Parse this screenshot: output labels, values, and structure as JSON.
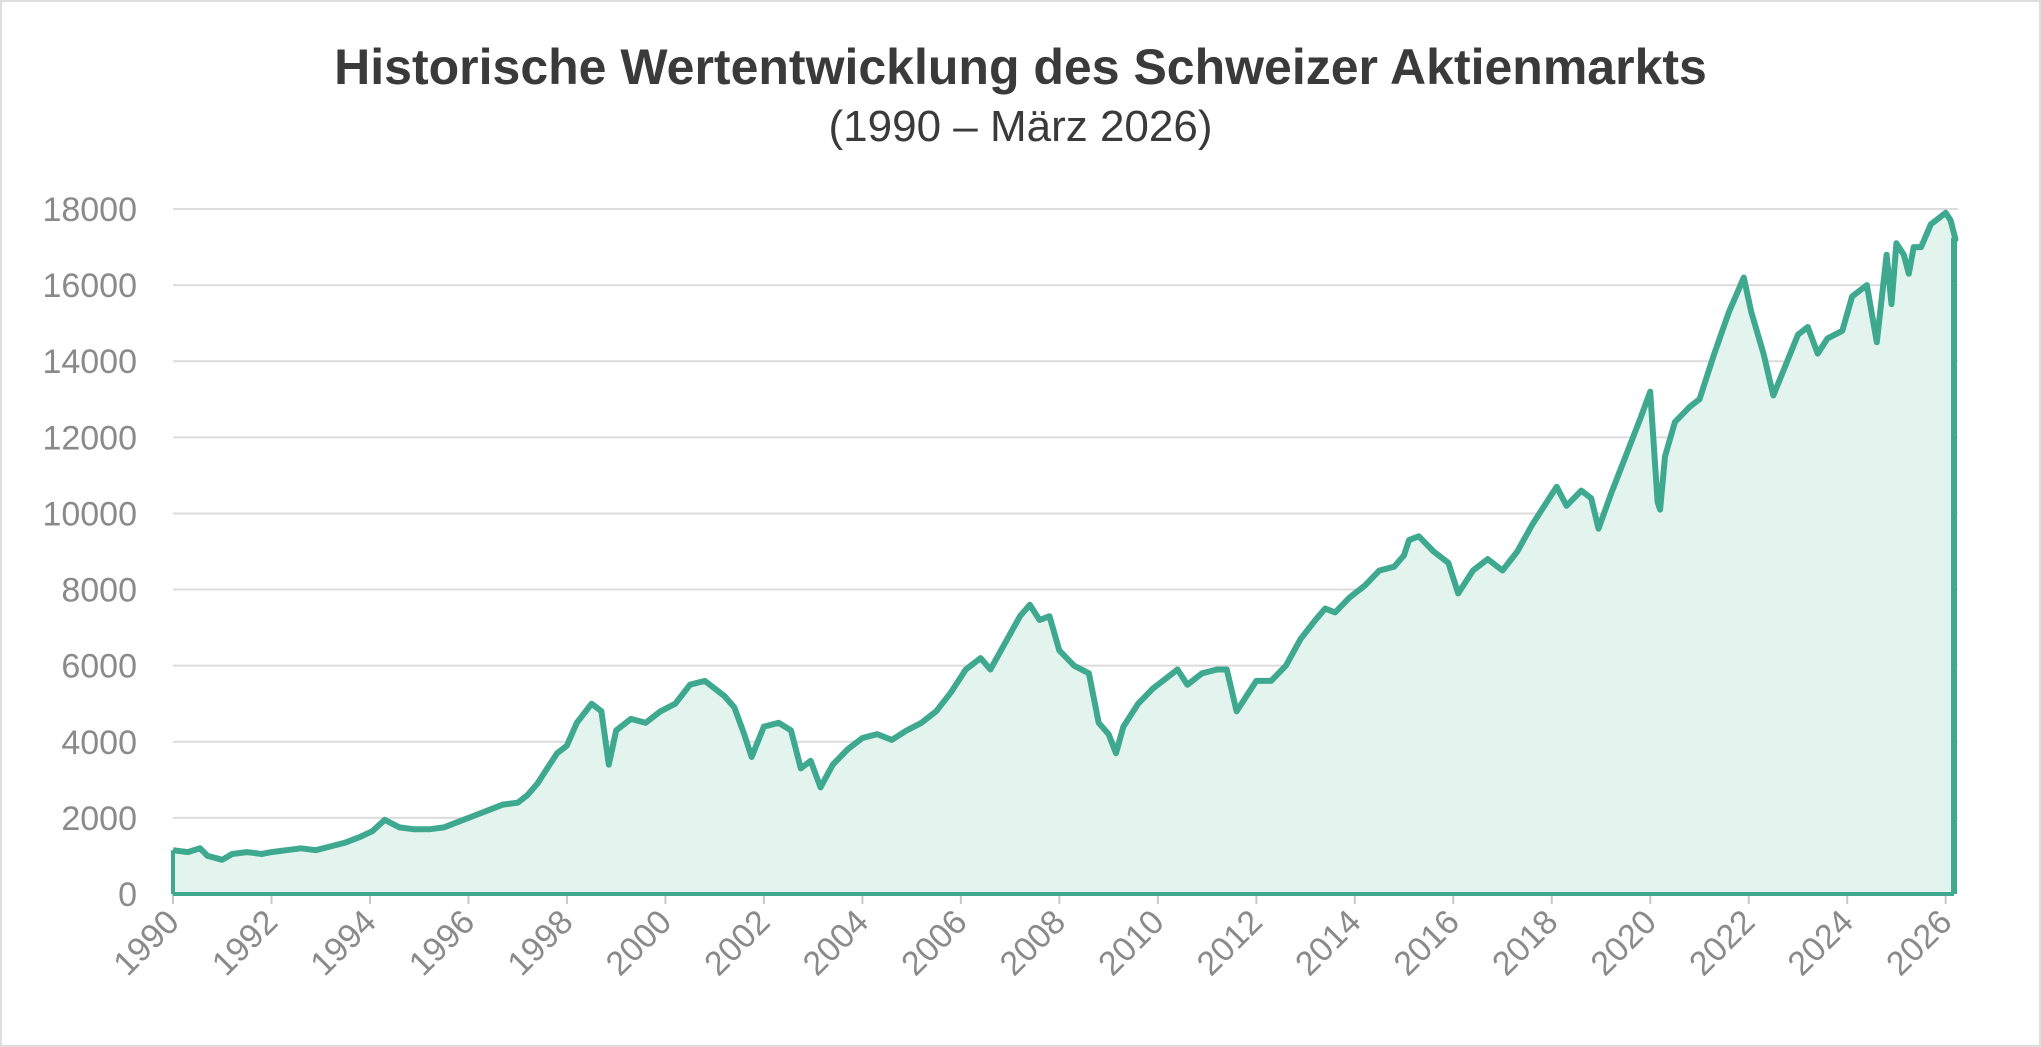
{
  "chart_data": {
    "type": "area",
    "title": "Historische Wertentwicklung des Schweizer Aktienmarkts",
    "subtitle": "(1990 – März 2026)",
    "xlabel": "",
    "ylabel": "",
    "xlim": [
      1990,
      2026.25
    ],
    "ylim": [
      0,
      18000
    ],
    "yticks": [
      0,
      2000,
      4000,
      6000,
      8000,
      10000,
      12000,
      14000,
      16000,
      18000
    ],
    "xticks": [
      1990,
      1992,
      1994,
      1996,
      1998,
      2000,
      2002,
      2004,
      2006,
      2008,
      2010,
      2012,
      2014,
      2016,
      2018,
      2020,
      2022,
      2024,
      2026
    ],
    "grid": "horizontal",
    "legend": "none",
    "colors": {
      "line": "#3fa98f",
      "fill": "#e3f4ef",
      "grid": "#dcdcdc",
      "axis": "#3fa98f"
    },
    "x": [
      1990.0,
      1990.3,
      1990.55,
      1990.7,
      1990.85,
      1991.0,
      1991.2,
      1991.5,
      1991.8,
      1992.0,
      1992.3,
      1992.6,
      1992.9,
      1993.2,
      1993.5,
      1993.8,
      1994.05,
      1994.3,
      1994.6,
      1994.9,
      1995.2,
      1995.5,
      1995.8,
      1996.1,
      1996.4,
      1996.7,
      1997.0,
      1997.2,
      1997.4,
      1997.6,
      1997.8,
      1998.0,
      1998.2,
      1998.5,
      1998.7,
      1998.85,
      1999.0,
      1999.3,
      1999.6,
      1999.9,
      2000.2,
      2000.5,
      2000.8,
      2001.0,
      2001.2,
      2001.4,
      2001.6,
      2001.75,
      2002.0,
      2002.3,
      2002.55,
      2002.75,
      2002.95,
      2003.15,
      2003.4,
      2003.7,
      2004.0,
      2004.3,
      2004.6,
      2004.9,
      2005.2,
      2005.5,
      2005.8,
      2006.1,
      2006.4,
      2006.6,
      2006.9,
      2007.2,
      2007.4,
      2007.6,
      2007.8,
      2008.0,
      2008.3,
      2008.6,
      2008.8,
      2009.0,
      2009.15,
      2009.3,
      2009.6,
      2009.9,
      2010.2,
      2010.4,
      2010.6,
      2010.9,
      2011.2,
      2011.4,
      2011.6,
      2011.75,
      2012.0,
      2012.3,
      2012.6,
      2012.9,
      2013.2,
      2013.4,
      2013.6,
      2013.9,
      2014.2,
      2014.5,
      2014.8,
      2015.0,
      2015.1,
      2015.3,
      2015.6,
      2015.9,
      2016.1,
      2016.4,
      2016.7,
      2017.0,
      2017.3,
      2017.6,
      2017.9,
      2018.1,
      2018.3,
      2018.6,
      2018.8,
      2018.95,
      2019.2,
      2019.5,
      2019.8,
      2020.0,
      2020.15,
      2020.2,
      2020.3,
      2020.5,
      2020.8,
      2021.0,
      2021.3,
      2021.6,
      2021.9,
      2022.05,
      2022.3,
      2022.5,
      2022.75,
      2023.0,
      2023.2,
      2023.4,
      2023.6,
      2023.9,
      2024.1,
      2024.4,
      2024.6,
      2024.8,
      2024.9,
      2025.0,
      2025.15,
      2025.25,
      2025.35,
      2025.5,
      2025.7,
      2025.9,
      2026.0,
      2026.1,
      2026.2
    ],
    "values": [
      1150,
      1100,
      1200,
      1000,
      950,
      900,
      1050,
      1100,
      1050,
      1100,
      1150,
      1200,
      1150,
      1250,
      1350,
      1500,
      1650,
      1950,
      1750,
      1700,
      1700,
      1750,
      1900,
      2050,
      2200,
      2350,
      2400,
      2600,
      2900,
      3300,
      3700,
      3900,
      4500,
      5000,
      4800,
      3400,
      4300,
      4600,
      4500,
      4800,
      5000,
      5500,
      5600,
      5400,
      5200,
      4900,
      4200,
      3600,
      4400,
      4500,
      4300,
      3300,
      3500,
      2800,
      3400,
      3800,
      4100,
      4200,
      4050,
      4300,
      4500,
      4800,
      5300,
      5900,
      6200,
      5900,
      6600,
      7300,
      7600,
      7200,
      7300,
      6400,
      6000,
      5800,
      4500,
      4200,
      3700,
      4400,
      5000,
      5400,
      5700,
      5900,
      5500,
      5800,
      5900,
      5900,
      4800,
      5100,
      5600,
      5600,
      6000,
      6700,
      7200,
      7500,
      7400,
      7800,
      8100,
      8500,
      8600,
      8900,
      9300,
      9400,
      9000,
      8700,
      7900,
      8500,
      8800,
      8500,
      9000,
      9700,
      10300,
      10700,
      10200,
      10600,
      10400,
      9600,
      10500,
      11500,
      12500,
      13200,
      10300,
      10100,
      11500,
      12400,
      12800,
      13000,
      14200,
      15300,
      16200,
      15300,
      14200,
      13100,
      13900,
      14700,
      14900,
      14200,
      14600,
      14800,
      15700,
      16000,
      14500,
      16800,
      15500,
      17100,
      16800,
      16300,
      17000,
      17000,
      17600,
      17800,
      17900,
      17700,
      17200
    ]
  }
}
